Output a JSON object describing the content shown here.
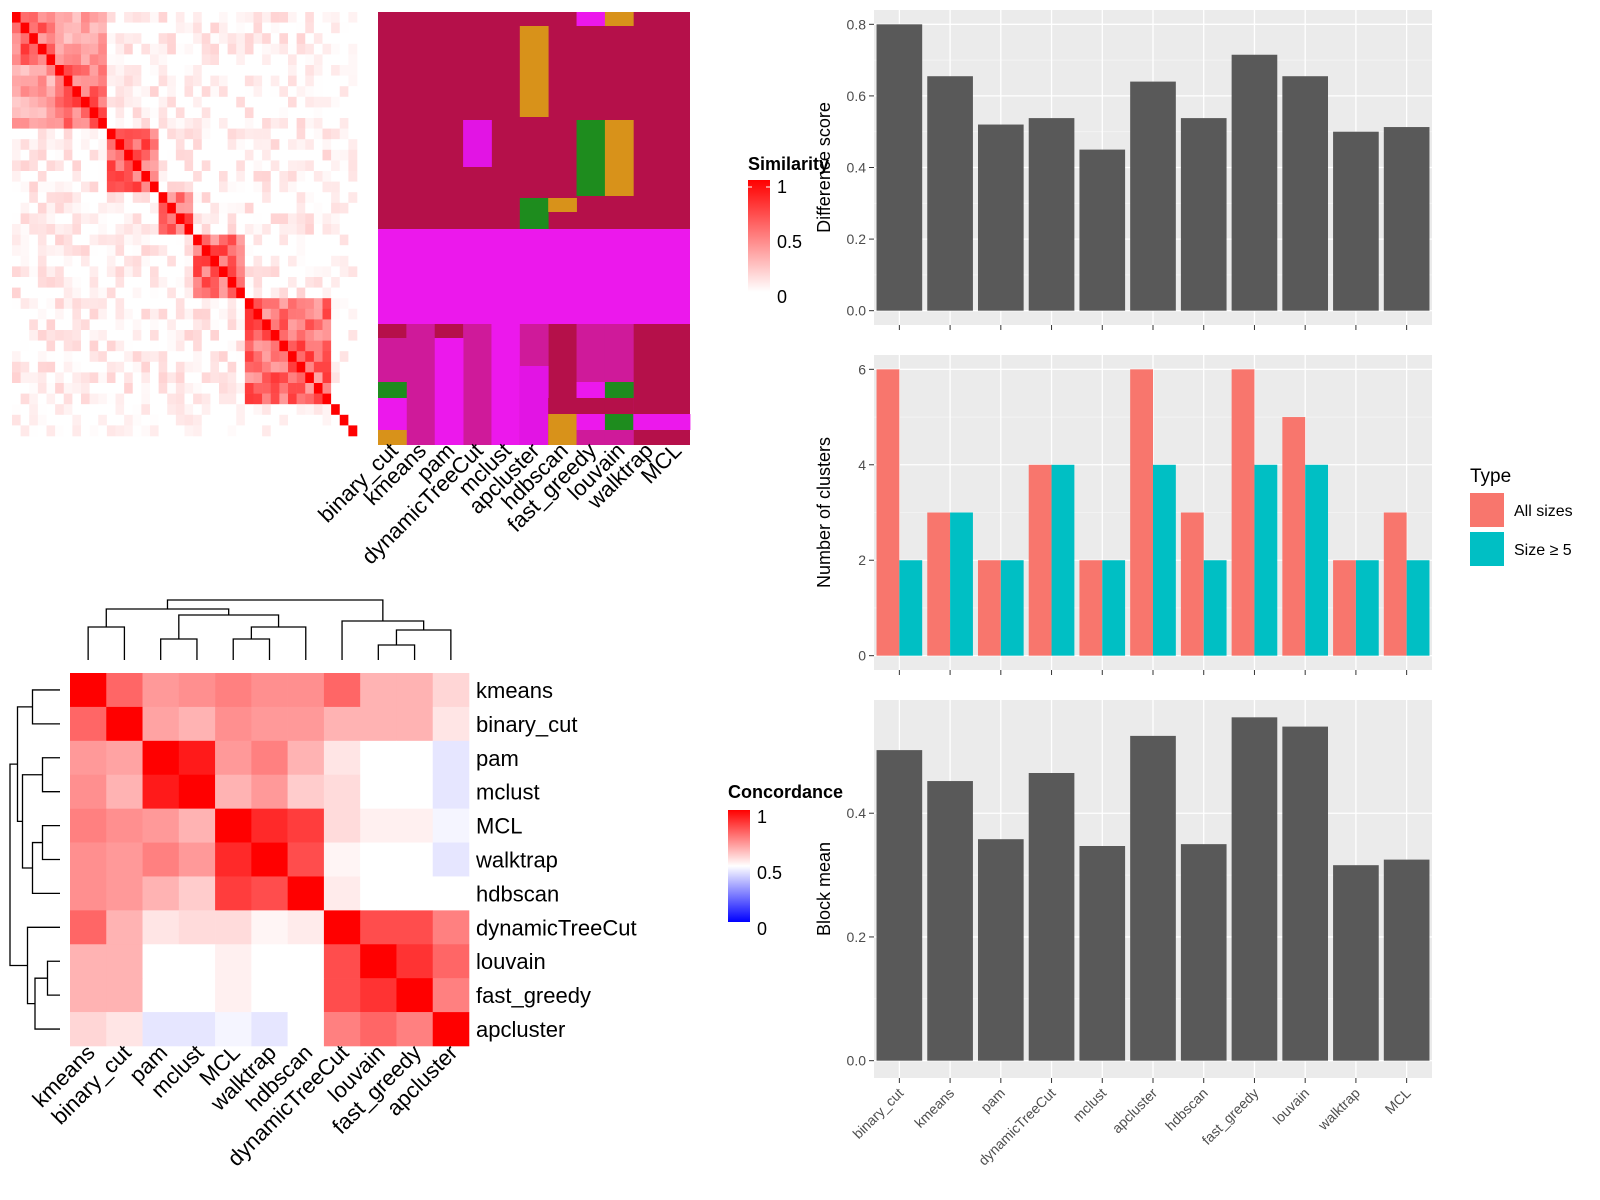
{
  "methods_bar_order": [
    "binary_cut",
    "kmeans",
    "pam",
    "dynamicTreeCut",
    "mclust",
    "apcluster",
    "hdbscan",
    "fast_greedy",
    "louvain",
    "walktrap",
    "MCL"
  ],
  "similarity_legend": {
    "title": "Similarity",
    "ticks": [
      "1",
      "0.5",
      "0"
    ],
    "colors": [
      "#ffffff",
      "#ff0000"
    ]
  },
  "concordance_legend": {
    "title": "Concordance",
    "ticks": [
      "1",
      "0.5",
      "0"
    ],
    "colors": [
      "#0000ff",
      "#ffffff",
      "#ff0000"
    ]
  },
  "type_legend": {
    "title": "Type",
    "items": [
      {
        "label": "All sizes",
        "color": "#F8766D"
      },
      {
        "label": "Size ≥ 5",
        "color": "#00BFC4"
      }
    ]
  },
  "membership_labels": [
    "binary_cut",
    "kmeans",
    "pam",
    "dynamicTreeCut",
    "mclust",
    "apcluster",
    "hdbscan",
    "fast_greedy",
    "louvain",
    "walktrap",
    "MCL"
  ],
  "concordance_order": [
    "kmeans",
    "binary_cut",
    "pam",
    "mclust",
    "MCL",
    "walktrap",
    "hdbscan",
    "dynamicTreeCut",
    "louvain",
    "fast_greedy",
    "apcluster"
  ],
  "chart_data": [
    {
      "type": "heatmap",
      "name": "similarity",
      "legend": "Similarity",
      "n": 40,
      "blocks": [
        [
          0,
          5
        ],
        [
          5,
          11
        ],
        [
          11,
          17
        ],
        [
          17,
          21
        ],
        [
          21,
          27
        ],
        [
          27,
          40
        ]
      ]
    },
    {
      "type": "heatmap",
      "name": "cluster-membership",
      "columns": [
        "binary_cut",
        "kmeans",
        "pam",
        "dynamicTreeCut",
        "mclust",
        "apcluster",
        "hdbscan",
        "fast_greedy",
        "louvain",
        "walktrap",
        "MCL"
      ],
      "palette": {
        "A": "#B5104A",
        "B": "#EC18EC",
        "C": "#CF1A9A",
        "D": "#D8921A",
        "E": "#1E8C1E",
        "F": "#E214E4",
        "G": "#C416A8"
      }
    },
    {
      "type": "heatmap",
      "name": "concordance",
      "legend": "Concordance",
      "rows": [
        "kmeans",
        "binary_cut",
        "pam",
        "mclust",
        "MCL",
        "walktrap",
        "hdbscan",
        "dynamicTreeCut",
        "louvain",
        "fast_greedy",
        "apcluster"
      ],
      "columns": [
        "kmeans",
        "binary_cut",
        "pam",
        "mclust",
        "MCL",
        "walktrap",
        "hdbscan",
        "dynamicTreeCut",
        "louvain",
        "fast_greedy",
        "apcluster"
      ],
      "values": [
        [
          1.0,
          0.8,
          0.7,
          0.72,
          0.75,
          0.72,
          0.72,
          0.8,
          0.65,
          0.65,
          0.58
        ],
        [
          0.8,
          1.0,
          0.68,
          0.65,
          0.72,
          0.7,
          0.7,
          0.65,
          0.65,
          0.65,
          0.55
        ],
        [
          0.7,
          0.68,
          1.0,
          0.95,
          0.7,
          0.75,
          0.65,
          0.55,
          0.5,
          0.5,
          0.45
        ],
        [
          0.72,
          0.65,
          0.95,
          1.0,
          0.65,
          0.7,
          0.6,
          0.57,
          0.5,
          0.5,
          0.45
        ],
        [
          0.75,
          0.72,
          0.7,
          0.65,
          1.0,
          0.92,
          0.88,
          0.57,
          0.53,
          0.53,
          0.48
        ],
        [
          0.72,
          0.7,
          0.75,
          0.7,
          0.92,
          1.0,
          0.85,
          0.52,
          0.5,
          0.5,
          0.45
        ],
        [
          0.72,
          0.7,
          0.65,
          0.6,
          0.88,
          0.85,
          1.0,
          0.54,
          0.5,
          0.5,
          0.5
        ],
        [
          0.8,
          0.65,
          0.55,
          0.57,
          0.57,
          0.52,
          0.54,
          1.0,
          0.85,
          0.85,
          0.75
        ],
        [
          0.65,
          0.65,
          0.5,
          0.5,
          0.53,
          0.5,
          0.5,
          0.85,
          1.0,
          0.9,
          0.8
        ],
        [
          0.65,
          0.65,
          0.5,
          0.5,
          0.53,
          0.5,
          0.5,
          0.85,
          0.9,
          1.0,
          0.75
        ],
        [
          0.58,
          0.55,
          0.45,
          0.45,
          0.48,
          0.45,
          0.5,
          0.75,
          0.8,
          0.75,
          1.0
        ]
      ]
    },
    {
      "type": "bar",
      "name": "difference-score",
      "categories": [
        "binary_cut",
        "kmeans",
        "pam",
        "dynamicTreeCut",
        "mclust",
        "apcluster",
        "hdbscan",
        "fast_greedy",
        "louvain",
        "walktrap",
        "MCL"
      ],
      "values": [
        0.8,
        0.655,
        0.52,
        0.538,
        0.45,
        0.64,
        0.538,
        0.715,
        0.655,
        0.5,
        0.513
      ],
      "ylabel": "Difference score",
      "ylim": [
        -0.04,
        0.84
      ],
      "yticks": [
        0.0,
        0.2,
        0.4,
        0.6,
        0.8
      ],
      "ytick_labels": [
        "0.0",
        "0.2",
        "0.4",
        "0.6",
        "0.8"
      ],
      "grid": true
    },
    {
      "type": "bar",
      "name": "number-of-clusters",
      "categories": [
        "binary_cut",
        "kmeans",
        "pam",
        "dynamicTreeCut",
        "mclust",
        "apcluster",
        "hdbscan",
        "fast_greedy",
        "louvain",
        "walktrap",
        "MCL"
      ],
      "series": [
        {
          "name": "All sizes",
          "color": "#F8766D",
          "values": [
            6,
            3,
            2,
            4,
            2,
            6,
            3,
            6,
            5,
            2,
            3
          ]
        },
        {
          "name": "Size ≥ 5",
          "color": "#00BFC4",
          "values": [
            2,
            3,
            2,
            4,
            2,
            4,
            2,
            4,
            4,
            2,
            2
          ]
        }
      ],
      "ylabel": "Number of clusters",
      "ylim": [
        -0.3,
        6.3
      ],
      "yticks": [
        0,
        2,
        4,
        6
      ],
      "ytick_labels": [
        "0",
        "2",
        "4",
        "6"
      ],
      "legend": "right",
      "grid": true
    },
    {
      "type": "bar",
      "name": "block-mean",
      "categories": [
        "binary_cut",
        "kmeans",
        "pam",
        "dynamicTreeCut",
        "mclust",
        "apcluster",
        "hdbscan",
        "fast_greedy",
        "louvain",
        "walktrap",
        "MCL"
      ],
      "values": [
        0.502,
        0.452,
        0.358,
        0.465,
        0.347,
        0.525,
        0.35,
        0.555,
        0.54,
        0.316,
        0.325
      ],
      "ylabel": "Block mean",
      "ylim": [
        -0.028,
        0.583
      ],
      "yticks": [
        0.0,
        0.2,
        0.4
      ],
      "ytick_labels": [
        "0.0",
        "0.2",
        "0.4"
      ],
      "grid": true
    }
  ]
}
